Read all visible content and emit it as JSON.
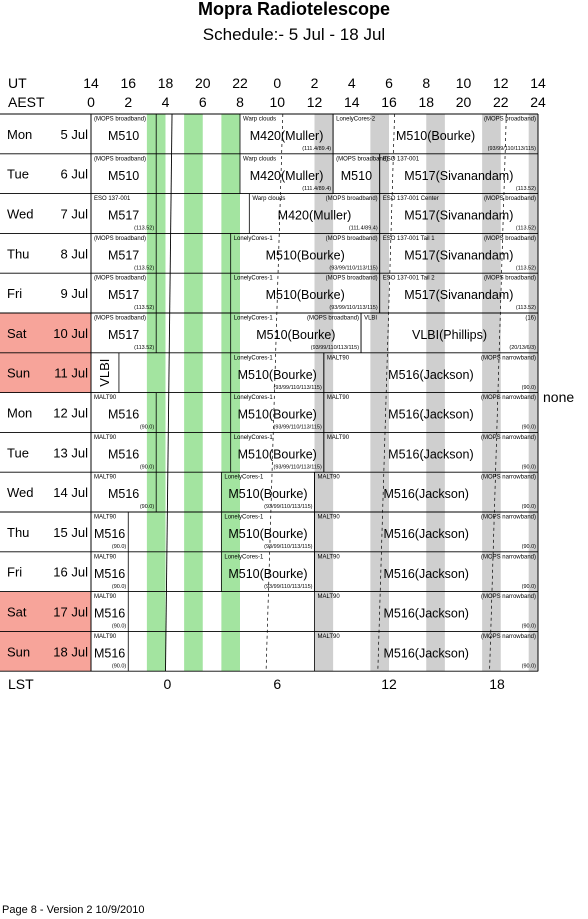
{
  "title": "Mopra Radiotelescope",
  "subtitle": "Schedule:- 5  Jul - 18 Jul",
  "axes": {
    "ut_label": "UT",
    "aest_label": "AEST",
    "lst_label": "LST",
    "ut_ticks": [
      "14",
      "16",
      "18",
      "20",
      "22",
      "0",
      "2",
      "4",
      "6",
      "8",
      "10",
      "12",
      "14"
    ],
    "aest_ticks": [
      "0",
      "2",
      "4",
      "6",
      "8",
      "10",
      "12",
      "14",
      "16",
      "18",
      "20",
      "22",
      "24"
    ],
    "lst_ticks": [
      "0",
      "6",
      "12",
      "18"
    ]
  },
  "colors": {
    "green": "#a3e4a0",
    "gray": "#cfcfcf",
    "weekend": "#f7a49a",
    "line": "#000000"
  },
  "side_note": "none",
  "footer": "Page 8 - Version 2  10/9/2010",
  "days": [
    {
      "dow": "Mon",
      "date": "5  Jul",
      "weekend": false,
      "blocks": [
        {
          "start": 0,
          "end": 3.5,
          "tag": "(MOPS broadband)",
          "name": "M510",
          "code": ""
        },
        {
          "start": 8,
          "end": 13,
          "tag": "Warp clouds",
          "name": "M420(Muller)",
          "code": "(111.4/89.4)"
        },
        {
          "start": 13,
          "end": 24,
          "tag": "LonelyCores-2",
          "tag2": "(MOPS broadband)",
          "name": "M510(Bourke)",
          "code": "(93/99/110/113/115)"
        }
      ]
    },
    {
      "dow": "Tue",
      "date": "6  Jul",
      "weekend": false,
      "blocks": [
        {
          "start": 0,
          "end": 3.5,
          "tag": "(MOPS broadband)",
          "name": "M510",
          "code": ""
        },
        {
          "start": 8,
          "end": 13,
          "tag": "Warp clouds",
          "name": "M420(Muller)",
          "code": "(111.4/89.4)"
        },
        {
          "start": 13,
          "end": 15.5,
          "tag": "(MOPS broadband)",
          "name": "M510",
          "code": ""
        },
        {
          "start": 15.5,
          "end": 24,
          "tag": "ESO 137-001",
          "name": "M517(Sivanandam)",
          "code": "(113.52)"
        }
      ]
    },
    {
      "dow": "Wed",
      "date": "7  Jul",
      "weekend": false,
      "blocks": [
        {
          "start": 0,
          "end": 3.5,
          "tag": "ESO 137-001",
          "name": "M517",
          "code": "(113.52)"
        },
        {
          "start": 8.5,
          "end": 15.5,
          "tag": "Warp clouds",
          "tag2": "(MOPS broadband)",
          "name": "M420(Muller)",
          "code": "(111.4/89.4)"
        },
        {
          "start": 15.5,
          "end": 24,
          "tag": "ESO 137-001 Center",
          "tag2": "(MOPS broadband)",
          "name": "M517(Sivanandam)",
          "code": "(113.52)"
        }
      ]
    },
    {
      "dow": "Thu",
      "date": "8  Jul",
      "weekend": false,
      "blocks": [
        {
          "start": 0,
          "end": 3.5,
          "tag": "(MOPS broadband)",
          "name": "M517",
          "code": "(113.52)"
        },
        {
          "start": 7.5,
          "end": 15.5,
          "tag": "LonelyCores-1",
          "tag2": "(MOPS broadband)",
          "name": "M510(Bourke)",
          "code": "(93/99/110/113/115)"
        },
        {
          "start": 15.5,
          "end": 24,
          "tag": "ESO 137-001 Tail 1",
          "tag2": "(MOPS broadband)",
          "name": "M517(Sivanandam)",
          "code": "(113.52)"
        }
      ]
    },
    {
      "dow": "Fri",
      "date": "9  Jul",
      "weekend": false,
      "blocks": [
        {
          "start": 0,
          "end": 3.5,
          "tag": "(MOPS broadband)",
          "name": "M517",
          "code": "(113.52)"
        },
        {
          "start": 7.5,
          "end": 15.5,
          "tag": "LonelyCores-1",
          "tag2": "(MOPS broadband)",
          "name": "M510(Bourke)",
          "code": "(93/99/110/113/115)"
        },
        {
          "start": 15.5,
          "end": 24,
          "tag": "ESO 137-001 Tail 2",
          "tag2": "(MOPS broadband)",
          "name": "M517(Sivanandam)",
          "code": "(113.52)"
        }
      ]
    },
    {
      "dow": "Sat",
      "date": "10 Jul",
      "weekend": true,
      "blocks": [
        {
          "start": 0,
          "end": 3.5,
          "tag": "(MOPS broadband)",
          "name": "M517",
          "code": "(113.52)"
        },
        {
          "start": 7.5,
          "end": 14.5,
          "tag": "LonelyCores-1",
          "tag2": "(MOPS broadband)",
          "name": "M510(Bourke)",
          "code": "(93/99/110/113/115)"
        },
        {
          "start": 14.5,
          "end": 24,
          "tag": "VLBI",
          "tag2": "(16)",
          "name": "VLBI(Phillips)",
          "code": "(20/13/6/3)"
        }
      ]
    },
    {
      "dow": "Sun",
      "date": "11 Jul",
      "weekend": true,
      "blocks": [
        {
          "start": 0,
          "end": 1.5,
          "tag": "",
          "name": "VLBI",
          "code": "",
          "vertical": true
        },
        {
          "start": 7.5,
          "end": 12.5,
          "tag": "LonelyCores-1",
          "name": "M510(Bourke)",
          "code": "(93/99/110/113/115)"
        },
        {
          "start": 12.5,
          "end": 24,
          "tag": "MALT90",
          "tag2": "(MOPS narrowband)",
          "name": "M516(Jackson)",
          "code": "(90.0)"
        }
      ]
    },
    {
      "dow": "Mon",
      "date": "12 Jul",
      "weekend": false,
      "blocks": [
        {
          "start": 0,
          "end": 3.5,
          "tag": "MALT90",
          "name": "M516",
          "code": "(90.0)"
        },
        {
          "start": 7.5,
          "end": 12.5,
          "tag": "LonelyCores-1",
          "name": "M510(Bourke)",
          "code": "(93/99/110/113/115)"
        },
        {
          "start": 12.5,
          "end": 24,
          "tag": "MALT90",
          "tag2": "(MOPS narrowband)",
          "name": "M516(Jackson)",
          "code": "(90.0)"
        }
      ]
    },
    {
      "dow": "Tue",
      "date": "13 Jul",
      "weekend": false,
      "blocks": [
        {
          "start": 0,
          "end": 3.5,
          "tag": "MALT90",
          "name": "M516",
          "code": "(90.0)"
        },
        {
          "start": 7.5,
          "end": 12.5,
          "tag": "LonelyCores-1",
          "name": "M510(Bourke)",
          "code": "(93/99/110/113/115)"
        },
        {
          "start": 12.5,
          "end": 24,
          "tag": "MALT90",
          "tag2": "(MOPS narrowband)",
          "name": "M516(Jackson)",
          "code": "(90.0)"
        }
      ]
    },
    {
      "dow": "Wed",
      "date": "14 Jul",
      "weekend": false,
      "blocks": [
        {
          "start": 0,
          "end": 3.5,
          "tag": "MALT90",
          "name": "M516",
          "code": "(90.0)"
        },
        {
          "start": 7,
          "end": 12,
          "tag": "LonelyCores-1",
          "name": "M510(Bourke)",
          "code": "(93/99/110/113/115)"
        },
        {
          "start": 12,
          "end": 24,
          "tag": "MALT90",
          "tag2": "(MOPS narrowband)",
          "name": "M516(Jackson)",
          "code": "(90.0)"
        }
      ]
    },
    {
      "dow": "Thu",
      "date": "15 Jul",
      "weekend": false,
      "blocks": [
        {
          "start": 0,
          "end": 2,
          "tag": "MALT90",
          "name": "M516",
          "code": "(90.0)"
        },
        {
          "start": 7,
          "end": 12,
          "tag": "LonelyCores-1",
          "name": "M510(Bourke)",
          "code": "(93/99/110/113/115)"
        },
        {
          "start": 12,
          "end": 24,
          "tag": "MALT90",
          "tag2": "(MOPS narrowband)",
          "name": "M516(Jackson)",
          "code": "(90.0)"
        }
      ]
    },
    {
      "dow": "Fri",
      "date": "16 Jul",
      "weekend": false,
      "blocks": [
        {
          "start": 0,
          "end": 2,
          "tag": "MALT90",
          "name": "M516",
          "code": "(90.0)"
        },
        {
          "start": 7,
          "end": 12,
          "tag": "LonelyCores-1",
          "name": "M510(Bourke)",
          "code": "(93/99/110/113/115)"
        },
        {
          "start": 12,
          "end": 24,
          "tag": "MALT90",
          "tag2": "(MOPS narrowband)",
          "name": "M516(Jackson)",
          "code": "(90.0)"
        }
      ]
    },
    {
      "dow": "Sat",
      "date": "17 Jul",
      "weekend": true,
      "blocks": [
        {
          "start": 0,
          "end": 2,
          "tag": "MALT90",
          "name": "M516",
          "code": "(90.0)"
        },
        {
          "start": 12,
          "end": 24,
          "tag": "MALT90",
          "tag2": "(MOPS narrowband)",
          "name": "M516(Jackson)",
          "code": "(90.0)"
        }
      ]
    },
    {
      "dow": "Sun",
      "date": "18 Jul",
      "weekend": true,
      "blocks": [
        {
          "start": 0,
          "end": 2,
          "tag": "MALT90",
          "name": "M516",
          "code": "(90.0)"
        },
        {
          "start": 12,
          "end": 24,
          "tag": "MALT90",
          "tag2": "(MOPS narrowband)",
          "name": "M516(Jackson)",
          "code": "(90.0)"
        }
      ]
    }
  ],
  "green_bands": [
    [
      3,
      4
    ],
    [
      5,
      6
    ],
    [
      7,
      8
    ]
  ],
  "gray_bands": [
    [
      12,
      13
    ],
    [
      15,
      16
    ],
    [
      18,
      19
    ],
    [
      21,
      22
    ],
    [
      23.5,
      24
    ]
  ]
}
